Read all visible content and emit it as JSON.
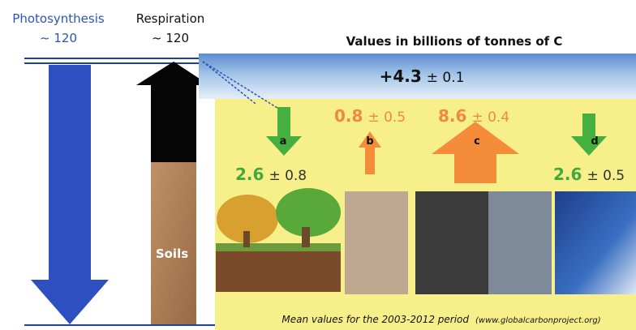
{
  "left": {
    "photosynthesis": {
      "label": "Photosynthesis",
      "value": "~ 120"
    },
    "respiration": {
      "label": "Respiration",
      "value": "~ 120"
    },
    "soils": "Soils"
  },
  "header": "Values in billions of tonnes of C",
  "atmosphere": {
    "value": "+4.3",
    "uncertainty": "± 0.1"
  },
  "flows": [
    {
      "letter": "a",
      "value": "2.6",
      "uncertainty": "± 0.8"
    },
    {
      "letter": "b",
      "value": "0.8",
      "uncertainty": "± 0.5"
    },
    {
      "letter": "c",
      "value": "8.6",
      "uncertainty": "± 0.4"
    },
    {
      "letter": "d",
      "value": "2.6",
      "uncertainty": "± 0.5"
    }
  ],
  "footer": {
    "period": "Mean values for the 2003-2012 period",
    "source": "(www.globalcarbonproject.org)"
  }
}
